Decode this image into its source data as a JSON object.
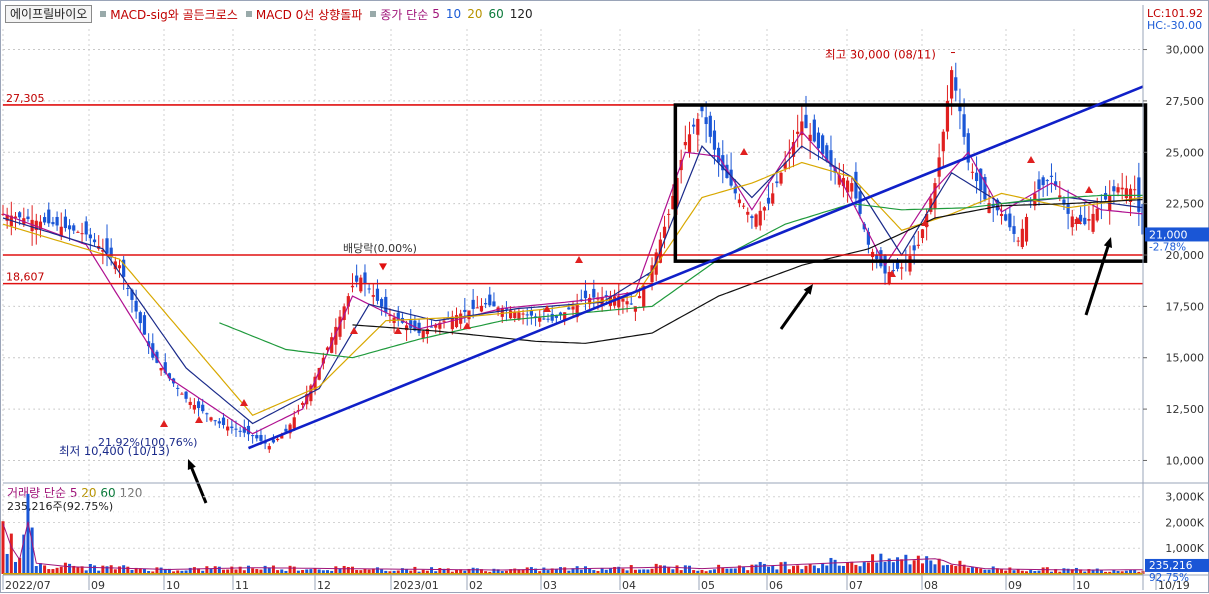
{
  "toolbar": {
    "stock_name": "에이프릴바이오",
    "indicators": [
      "MACD-sig와 골든크로스",
      "MACD 0선 상향돌파",
      "종가 단순"
    ],
    "ma_periods": [
      "5",
      "10",
      "20",
      "60",
      "120"
    ]
  },
  "volume_legend": {
    "label": "거래량 단순",
    "periods": [
      "5",
      "20",
      "60",
      "120"
    ],
    "current": "235,216주(92.75%)"
  },
  "colors": {
    "up": "#e02020",
    "down": "#1a56d6",
    "ma5": "#b01090",
    "ma10": "#1a2a8a",
    "ma20": "#d8a800",
    "ma60": "#1f9a3c",
    "ma120": "#111111",
    "trend": "#1020c8",
    "level": "#e01010",
    "box": "#000000"
  },
  "chart_data": [
    {
      "type": "candlestick",
      "title": "에이프릴바이오",
      "ylim": [
        9000,
        31000
      ],
      "y_ticks": [
        {
          "value": 30000,
          "label": "30,000"
        },
        {
          "value": 27500,
          "label": "27,500"
        },
        {
          "value": 25000,
          "label": "25,000"
        },
        {
          "value": 22500,
          "label": "22,500"
        },
        {
          "value": 20000,
          "label": "20,000"
        },
        {
          "value": 17500,
          "label": "17,500"
        },
        {
          "value": 15000,
          "label": "15,000"
        },
        {
          "value": 12500,
          "label": "12,500"
        },
        {
          "value": 10000,
          "label": "10,000"
        }
      ],
      "x_ticks": [
        "2022/07",
        "09",
        "10",
        "11",
        "12",
        "2023/01",
        "02",
        "03",
        "04",
        "05",
        "06",
        "07",
        "08",
        "09",
        "10",
        "10/19"
      ],
      "price_path": [
        [
          0,
          22000
        ],
        [
          6,
          21500
        ],
        [
          10,
          21000
        ],
        [
          14,
          19500
        ],
        [
          18,
          15000
        ],
        [
          22,
          13000
        ],
        [
          26,
          11800
        ],
        [
          30,
          11200
        ],
        [
          32,
          10700
        ],
        [
          34,
          11400
        ],
        [
          36,
          12800
        ],
        [
          38,
          14500
        ],
        [
          40,
          16500
        ],
        [
          42,
          18500
        ],
        [
          43,
          18900
        ],
        [
          46,
          17200
        ],
        [
          50,
          16200
        ],
        [
          54,
          17000
        ],
        [
          58,
          17600
        ],
        [
          62,
          17200
        ],
        [
          66,
          16800
        ],
        [
          70,
          17900
        ],
        [
          74,
          18000
        ],
        [
          76,
          17500
        ],
        [
          78,
          19500
        ],
        [
          80,
          22000
        ],
        [
          82,
          25500
        ],
        [
          84,
          27000
        ],
        [
          86,
          24500
        ],
        [
          88,
          23000
        ],
        [
          90,
          21800
        ],
        [
          92,
          22500
        ],
        [
          94,
          24500
        ],
        [
          96,
          26500
        ],
        [
          98,
          25200
        ],
        [
          100,
          24000
        ],
        [
          102,
          23500
        ],
        [
          104,
          20500
        ],
        [
          106,
          19100
        ],
        [
          108,
          19400
        ],
        [
          110,
          20500
        ],
        [
          112,
          23500
        ],
        [
          113,
          26000
        ],
        [
          114,
          29000
        ],
        [
          115,
          27000
        ],
        [
          116,
          24500
        ],
        [
          118,
          22700
        ],
        [
          120,
          22000
        ],
        [
          122,
          20700
        ],
        [
          124,
          23000
        ],
        [
          126,
          23800
        ],
        [
          128,
          22000
        ],
        [
          130,
          21500
        ],
        [
          132,
          22500
        ],
        [
          134,
          23300
        ],
        [
          136,
          23200
        ],
        [
          137,
          21000
        ]
      ],
      "ma_series": [
        {
          "name": "5",
          "color": "#b01090",
          "values": [
            [
              0,
              22000
            ],
            [
              10,
              20500
            ],
            [
              20,
              14000
            ],
            [
              30,
              11300
            ],
            [
              36,
              12500
            ],
            [
              42,
              18000
            ],
            [
              50,
              16400
            ],
            [
              60,
              17400
            ],
            [
              70,
              17800
            ],
            [
              76,
              18200
            ],
            [
              82,
              25000
            ],
            [
              86,
              24800
            ],
            [
              90,
              22200
            ],
            [
              96,
              26000
            ],
            [
              100,
              24200
            ],
            [
              106,
              19500
            ],
            [
              112,
              23200
            ],
            [
              116,
              25000
            ],
            [
              120,
              22100
            ],
            [
              126,
              23500
            ],
            [
              132,
              22200
            ],
            [
              137,
              22000
            ]
          ]
        },
        {
          "name": "10",
          "color": "#1a2a8a",
          "values": [
            [
              0,
              21800
            ],
            [
              12,
              20300
            ],
            [
              22,
              14500
            ],
            [
              30,
              11800
            ],
            [
              38,
              13500
            ],
            [
              44,
              17600
            ],
            [
              52,
              16800
            ],
            [
              62,
              17400
            ],
            [
              72,
              17700
            ],
            [
              78,
              19200
            ],
            [
              84,
              25300
            ],
            [
              90,
              22800
            ],
            [
              96,
              25300
            ],
            [
              102,
              23800
            ],
            [
              108,
              20000
            ],
            [
              114,
              24000
            ],
            [
              120,
              22500
            ],
            [
              128,
              22800
            ],
            [
              137,
              22300
            ]
          ]
        },
        {
          "name": "20",
          "color": "#d8a800",
          "values": [
            [
              0,
              21500
            ],
            [
              14,
              19800
            ],
            [
              22,
              16000
            ],
            [
              30,
              12200
            ],
            [
              38,
              13600
            ],
            [
              46,
              16800
            ],
            [
              56,
              17000
            ],
            [
              66,
              17400
            ],
            [
              76,
              18000
            ],
            [
              84,
              22800
            ],
            [
              90,
              23500
            ],
            [
              96,
              24500
            ],
            [
              102,
              23800
            ],
            [
              108,
              21200
            ],
            [
              114,
              22000
            ],
            [
              120,
              23000
            ],
            [
              128,
              22300
            ],
            [
              137,
              22800
            ]
          ]
        },
        {
          "name": "60",
          "color": "#1f9a3c",
          "values": [
            [
              26,
              16700
            ],
            [
              34,
              15400
            ],
            [
              42,
              15000
            ],
            [
              50,
              15900
            ],
            [
              60,
              16800
            ],
            [
              70,
              17200
            ],
            [
              78,
              17500
            ],
            [
              86,
              19800
            ],
            [
              94,
              21500
            ],
            [
              102,
              22500
            ],
            [
              108,
              22200
            ],
            [
              116,
              22300
            ],
            [
              124,
              22700
            ],
            [
              132,
              22900
            ],
            [
              137,
              22900
            ]
          ]
        },
        {
          "name": "120",
          "color": "#111111",
          "values": [
            [
              42,
              16600
            ],
            [
              52,
              16300
            ],
            [
              64,
              15800
            ],
            [
              70,
              15700
            ],
            [
              78,
              16200
            ],
            [
              86,
              18000
            ],
            [
              96,
              19500
            ],
            [
              104,
              20300
            ],
            [
              112,
              21800
            ],
            [
              120,
              22400
            ],
            [
              128,
              22500
            ],
            [
              137,
              22700
            ]
          ]
        }
      ],
      "annotations": {
        "high": {
          "label": "최고 30,000 (08/11)",
          "value": 30000
        },
        "low": {
          "label": "최저 10,400 (10/13)",
          "value": 10400
        },
        "low_change": "21.92%(100.76%)",
        "dividend": "배당락(0.00%)",
        "level_top": {
          "label": "27,305",
          "value": 27305
        },
        "level_mid": {
          "label": "20,000",
          "value": 20000
        },
        "level_bottom": {
          "label": "18,607",
          "value": 18607
        },
        "lc_badge": "LC:101.92",
        "hc_badge": "HC:-30.00",
        "current_price": "21,000",
        "current_change": "-2.78%"
      }
    },
    {
      "type": "bar",
      "title": "거래량",
      "ylim": [
        0,
        3300
      ],
      "y_unit": "K",
      "y_ticks": [
        {
          "value": 3000,
          "label": "3,000K"
        },
        {
          "value": 2000,
          "label": "2,000K"
        },
        {
          "value": 1000,
          "label": "1,000K"
        }
      ],
      "current_value": "235,216",
      "current_pct": "92.75%",
      "spikes": [
        [
          0,
          2800
        ],
        [
          1,
          1500
        ],
        [
          2,
          800
        ],
        [
          3,
          2900
        ],
        [
          4,
          600
        ],
        [
          8,
          400
        ],
        [
          20,
          250
        ],
        [
          30,
          350
        ],
        [
          40,
          300
        ],
        [
          60,
          220
        ],
        [
          80,
          380
        ],
        [
          84,
          300
        ],
        [
          112,
          850
        ],
        [
          113,
          750
        ],
        [
          114,
          550
        ],
        [
          118,
          300
        ],
        [
          122,
          260
        ],
        [
          130,
          220
        ],
        [
          137,
          235
        ]
      ]
    }
  ]
}
